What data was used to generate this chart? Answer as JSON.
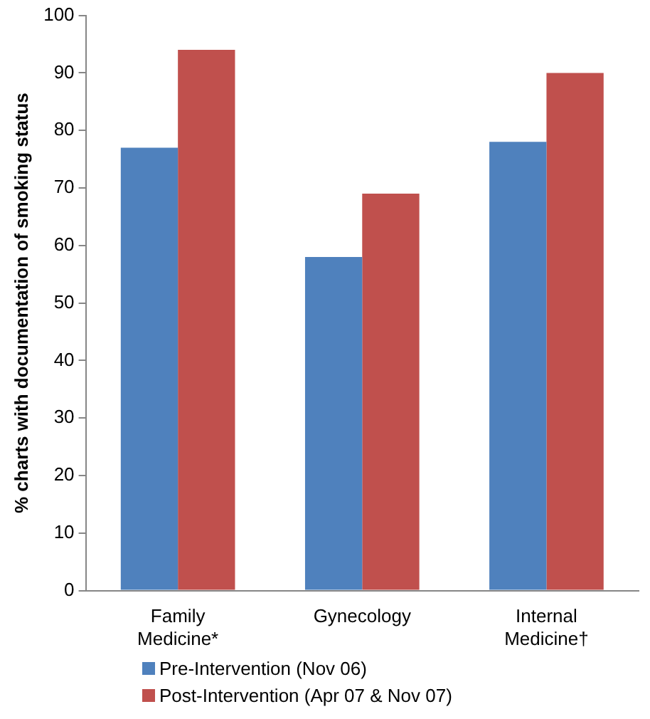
{
  "chart_data": {
    "type": "bar",
    "ylabel": "% charts with documentation of smoking status",
    "categories": [
      "Family Medicine*",
      "Gynecology",
      "Internal Medicine†"
    ],
    "series": [
      {
        "name": "Pre-Intervention (Nov 06)",
        "color": "#4f81bd",
        "values": [
          77,
          58,
          78
        ]
      },
      {
        "name": "Post-Intervention (Apr 07 & Nov 07)",
        "color": "#c0504d",
        "values": [
          94,
          69,
          90
        ]
      }
    ],
    "ylim": [
      0,
      100
    ],
    "yticks": [
      0,
      10,
      20,
      30,
      40,
      50,
      60,
      70,
      80,
      90,
      100
    ],
    "grid": false,
    "legend": "bottom"
  }
}
